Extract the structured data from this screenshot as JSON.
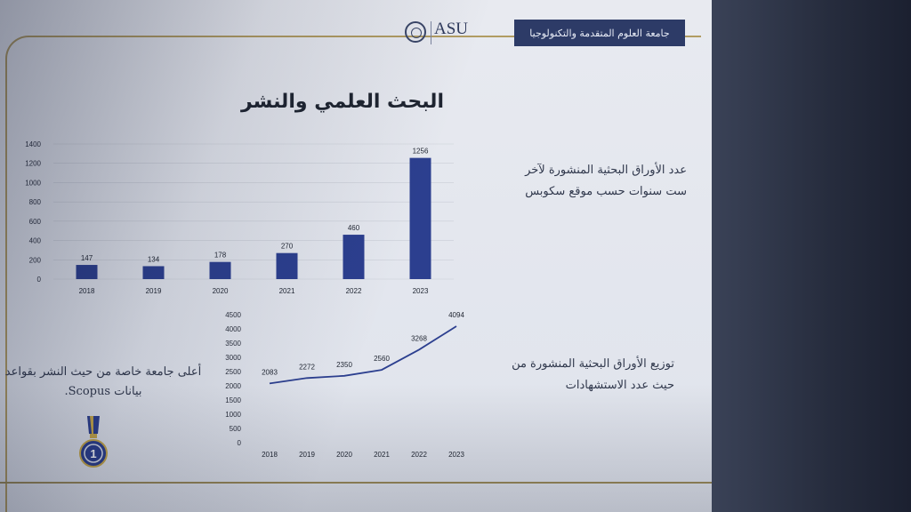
{
  "header": {
    "university_banner": "جامعة العلوم المتقدمة والتكنولوجيا",
    "logo_text": "ASU"
  },
  "page_title": "البحث العلمي والنشر",
  "descriptions": {
    "bar_chart": "عدد الأوراق البحثية المنشورة لآخر ست سنوات حسب موقع سكوبس",
    "line_chart": "توزيع الأوراق البحثية المنشورة من حيث عدد الاستشهادات",
    "award": "أعلى جامعة خاصة من حيث النشر بقواعد بيانات Scopus."
  },
  "award_badge": {
    "icon": "medal-icon",
    "number": "1"
  },
  "colors": {
    "bar": "#2c3f8f",
    "line": "#2c3f8f",
    "header_band": "#2d3b67",
    "frame": "#b19c62"
  },
  "chart_data": [
    {
      "type": "bar",
      "categories": [
        "2018",
        "2019",
        "2020",
        "2021",
        "2022",
        "2023"
      ],
      "values": [
        147,
        134,
        178,
        270,
        460,
        1256
      ],
      "ylim": [
        0,
        1400
      ],
      "yticks": [
        "0",
        "200",
        "400",
        "600",
        "800",
        "1000",
        "1200",
        "1400"
      ],
      "grid": true
    },
    {
      "type": "line",
      "categories": [
        "2018",
        "2019",
        "2020",
        "2021",
        "2022",
        "2023"
      ],
      "values": [
        2083,
        2272,
        2350,
        2560,
        3268,
        4094
      ],
      "ylim": [
        0,
        4500
      ],
      "yticks": [
        "0",
        "500",
        "1000",
        "1500",
        "2000",
        "2500",
        "3000",
        "3500",
        "4000",
        "4500"
      ],
      "grid": false
    }
  ]
}
